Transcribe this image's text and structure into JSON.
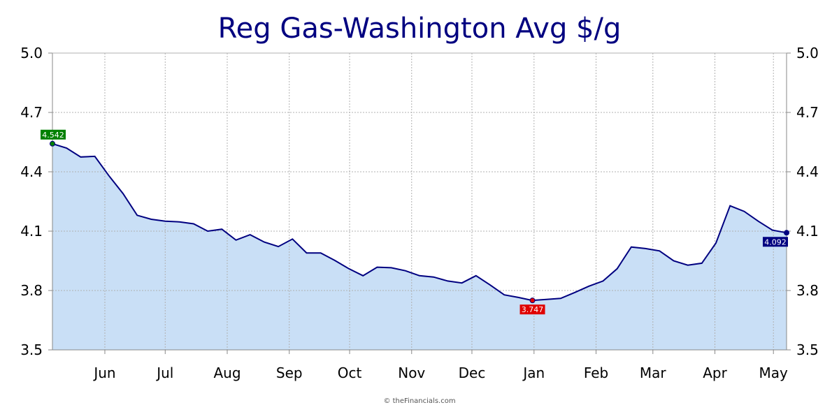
{
  "chart_data": {
    "type": "area",
    "title": "Reg Gas-Washington Avg $/g",
    "xlabel": "",
    "ylabel": "",
    "ylim": [
      3.5,
      5.0
    ],
    "yticks": [
      "3.5",
      "3.8",
      "4.1",
      "4.4",
      "4.7",
      "5.0"
    ],
    "month_labels": [
      "Jun",
      "Jul",
      "Aug",
      "Sep",
      "Oct",
      "Nov",
      "Dec",
      "Jan",
      "Feb",
      "Mar",
      "Apr",
      "May"
    ],
    "grid": true,
    "colors": {
      "line": "#000080",
      "fill": "#c9dff6",
      "start_marker": "#008000",
      "min_marker": "#e00000",
      "end_marker": "#000080"
    },
    "series": [
      {
        "values": [
          4.542,
          4.52,
          4.475,
          4.478,
          4.38,
          4.29,
          4.18,
          4.16,
          4.15,
          4.147,
          4.137,
          4.1,
          4.11,
          4.055,
          4.082,
          4.045,
          4.022,
          4.06,
          3.99,
          3.99,
          3.952,
          3.91,
          3.875,
          3.918,
          3.915,
          3.9,
          3.875,
          3.868,
          3.848,
          3.838,
          3.875,
          3.828,
          3.778,
          3.765,
          3.75,
          3.755,
          3.76,
          3.79,
          3.822,
          3.848,
          3.91,
          4.02,
          4.012,
          4.0,
          3.95,
          3.928,
          3.938,
          4.04,
          4.228,
          4.2,
          4.15,
          4.105,
          4.092
        ]
      }
    ],
    "annotations": {
      "start": "4.542",
      "min": "3.747",
      "end": "4.092"
    },
    "credit": "© theFinancials.com"
  }
}
